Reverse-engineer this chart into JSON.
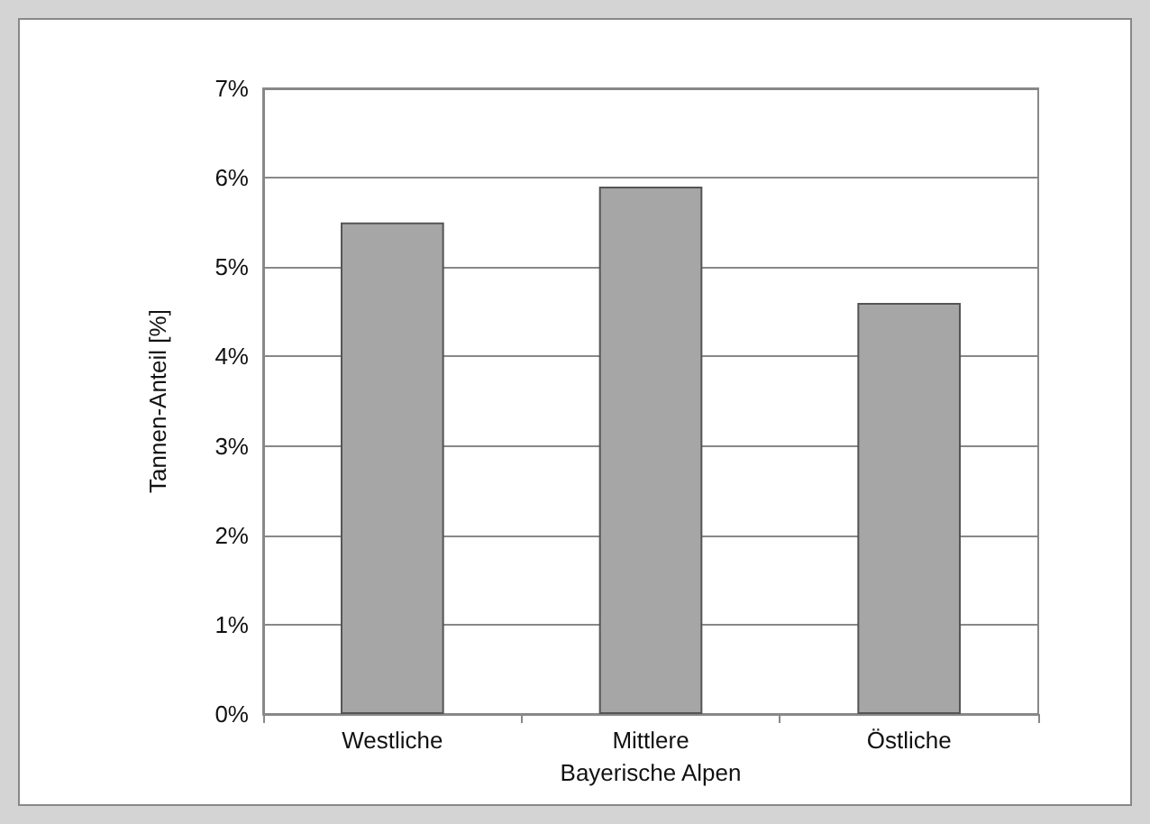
{
  "chart_data": {
    "type": "bar",
    "xlabel": "Bayerische Alpen",
    "ylabel": "Tannen-Anteil [%]",
    "categories": [
      "Westliche",
      "Mittlere",
      "Östliche"
    ],
    "values": [
      5.5,
      5.9,
      4.6
    ],
    "color": "#a6a6a6",
    "ylim": [
      0,
      7
    ],
    "yticks": [
      {
        "value": 0,
        "label": "0%"
      },
      {
        "value": 1,
        "label": "1%"
      },
      {
        "value": 2,
        "label": "2%"
      },
      {
        "value": 3,
        "label": "3%"
      },
      {
        "value": 4,
        "label": "4%"
      },
      {
        "value": 5,
        "label": "5%"
      },
      {
        "value": 6,
        "label": "6%"
      },
      {
        "value": 7,
        "label": "7%"
      }
    ],
    "grid": "y"
  }
}
